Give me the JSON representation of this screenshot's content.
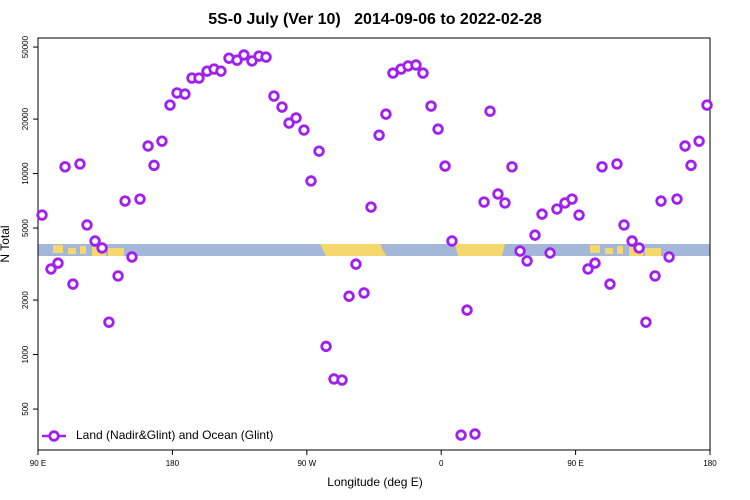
{
  "chart_data": {
    "type": "scatter",
    "title": "5S-0 July (Ver 10)   2014-09-06 to 2022-02-28",
    "x_label": "Longitude (deg E)",
    "y_label": "N Total",
    "xlim": [
      90,
      540
    ],
    "xticks": [
      {
        "value": 90,
        "label": "90 E"
      },
      180,
      {
        "value": 270,
        "label": "90 W"
      },
      {
        "value": 360,
        "label": "0"
      },
      {
        "value": 450,
        "label": "90 E"
      },
      {
        "value": 540,
        "label": "180"
      }
    ],
    "ylim": [
      297,
      56100
    ],
    "yticks": [
      500,
      1000,
      2000,
      5000,
      10000,
      20000,
      50000
    ],
    "ylog": true,
    "grid": false,
    "legend": "bottom-left",
    "series": [
      {
        "name": "Land (Nadir&Glint) and Ocean (Glint)",
        "color": "#a020f0",
        "x": [
          92.7,
          98.7,
          103.4,
          108.1,
          113.4,
          118.1,
          122.8,
          128.2,
          132.9,
          137.5,
          143.6,
          148.3,
          152.9,
          158.3,
          163.7,
          167.7,
          173.0,
          178.4,
          183.1,
          188.4,
          193.1,
          197.8,
          203.2,
          207.9,
          212.5,
          217.9,
          223.3,
          227.9,
          233.3,
          238.0,
          242.7,
          248.0,
          253.4,
          258.1,
          262.8,
          268.1,
          272.8,
          278.2,
          282.9,
          288.2,
          293.6,
          298.3,
          302.9,
          308.3,
          313.0,
          318.4,
          323.0,
          327.7,
          333.1,
          337.8,
          343.1,
          347.8,
          353.2,
          357.9,
          362.6,
          367.2,
          373.3,
          377.3,
          382.6,
          388.7,
          392.7,
          398.0,
          402.7,
          407.4,
          412.8,
          417.5,
          422.8,
          427.5,
          432.9,
          437.5,
          442.9,
          447.6,
          452.3,
          458.3,
          463.0,
          467.7,
          473.0,
          477.7,
          482.4,
          487.8,
          492.5,
          497.1,
          503.2,
          507.2,
          512.6,
          517.9,
          523.3,
          527.3,
          532.7,
          538.0
        ],
        "values": [
          5900,
          2970,
          3200,
          10900,
          2450,
          11300,
          5200,
          4240,
          3880,
          1510,
          2720,
          7050,
          3460,
          7230,
          14200,
          11100,
          15100,
          23900,
          27900,
          27500,
          33700,
          33700,
          36800,
          37800,
          36800,
          43400,
          42300,
          45200,
          41900,
          44600,
          44000,
          26800,
          23300,
          19000,
          20300,
          17400,
          9100,
          13300,
          1110,
          733,
          723,
          2100,
          3160,
          2190,
          6530,
          16300,
          21300,
          35900,
          37800,
          39300,
          39800,
          35900,
          23600,
          17600,
          11000,
          4240,
          359,
          1760,
          364,
          6960,
          22100,
          7710,
          6880,
          10900,
          3730,
          3290,
          4570,
          5970,
          3640,
          6370,
          6880,
          7230,
          5900,
          2970,
          3200,
          10900,
          2450,
          11300,
          5200,
          4240,
          3880,
          1510,
          2720,
          7050,
          3460,
          7230,
          14200,
          11100,
          15100,
          23900
        ]
      }
    ]
  }
}
